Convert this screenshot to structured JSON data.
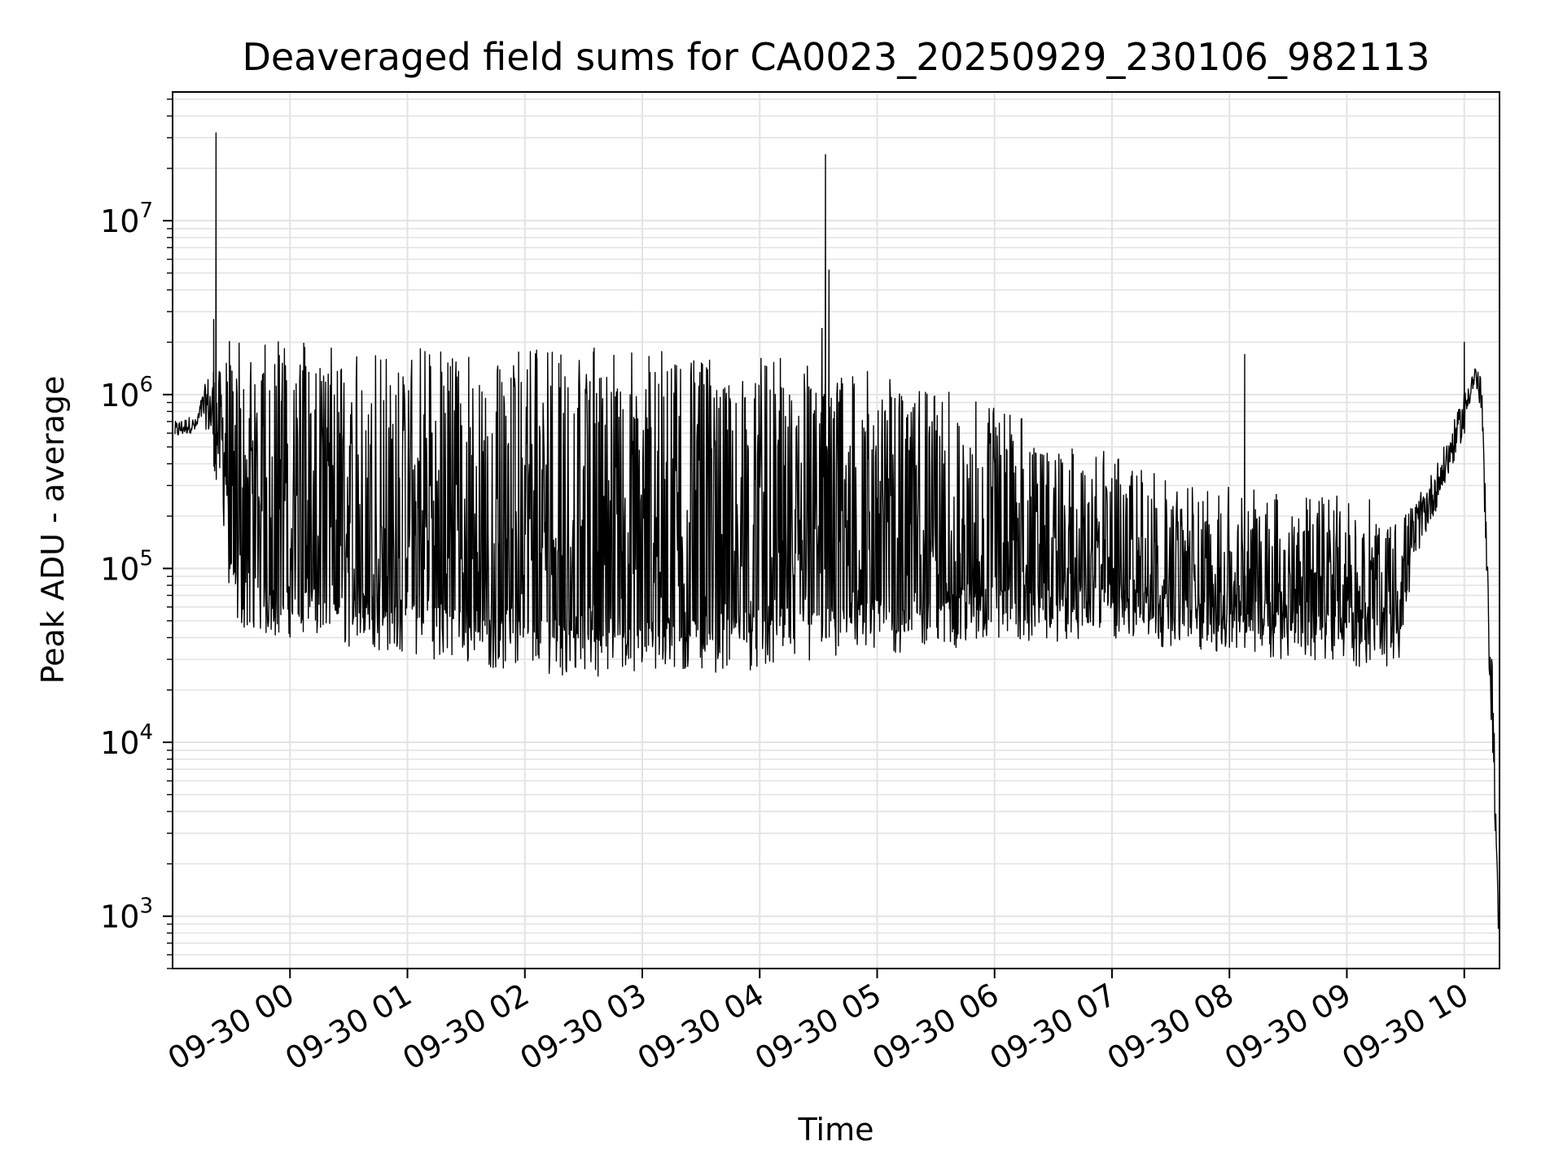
{
  "chart_data": {
    "type": "line",
    "title": "Deaveraged field sums for CA0023_20250929_230106_982113",
    "xlabel": "Time",
    "ylabel": "Peak ADU - average",
    "yscale": "log",
    "ylim": [
      500,
      55000000
    ],
    "xlim_hours": [
      -1.0,
      10.3
    ],
    "grid": true,
    "x_tick_hours": [
      0,
      1,
      2,
      3,
      4,
      5,
      6,
      7,
      8,
      9,
      10
    ],
    "x_tick_labels": [
      "09-30 00",
      "09-30 01",
      "09-30 02",
      "09-30 03",
      "09-30 04",
      "09-30 05",
      "09-30 06",
      "09-30 07",
      "09-30 08",
      "09-30 09",
      "09-30 10"
    ],
    "y_tick_values": [
      1000,
      10000,
      100000,
      1000000,
      10000000
    ],
    "y_tick_labels": [
      {
        "base": "10",
        "exp": "3"
      },
      {
        "base": "10",
        "exp": "4"
      },
      {
        "base": "10",
        "exp": "5"
      },
      {
        "base": "10",
        "exp": "6"
      },
      {
        "base": "10",
        "exp": "7"
      }
    ],
    "series": [
      {
        "name": "Peak ADU - average",
        "color": "#000000",
        "envelope": {
          "hours": [
            -0.98,
            -0.85,
            -0.8,
            -0.75,
            -0.7,
            -0.6,
            -0.5,
            -0.4,
            -0.3,
            -0.2,
            0.0,
            0.5,
            1.0,
            1.5,
            2.0,
            2.5,
            3.0,
            3.5,
            4.0,
            4.5,
            5.0,
            5.5,
            6.0,
            6.5,
            7.0,
            7.5,
            8.0,
            8.5,
            9.0,
            9.3,
            9.45,
            9.6,
            9.8,
            10.0,
            10.05,
            10.1,
            10.15,
            10.2,
            10.25,
            10.29
          ],
          "upper": [
            700000,
            750000,
            720000,
            1000000,
            1300000,
            1400000,
            1400000,
            1450000,
            1350000,
            1400000,
            1350000,
            1300000,
            1300000,
            1250000,
            1250000,
            1200000,
            1200000,
            1150000,
            1100000,
            1100000,
            900000,
            750000,
            600000,
            450000,
            300000,
            250000,
            200000,
            180000,
            180000,
            170000,
            200000,
            250000,
            450000,
            1000000,
            1400000,
            1500000,
            1200000,
            100000,
            20000,
            1000
          ],
          "lower": [
            550000,
            600000,
            600000,
            700000,
            600000,
            250000,
            80000,
            60000,
            50000,
            50000,
            48000,
            46000,
            45000,
            43000,
            40000,
            38000,
            38000,
            37000,
            38000,
            40000,
            42000,
            44000,
            45000,
            45000,
            44000,
            42000,
            40000,
            38000,
            35000,
            32000,
            35000,
            120000,
            250000,
            600000,
            900000,
            1100000,
            700000,
            40000,
            6000,
            800
          ],
          "dip_floor": [
            500000,
            500000,
            500000,
            450000,
            400000,
            120000,
            50000,
            45000,
            40000,
            40000,
            40000,
            35000,
            32000,
            28000,
            25000,
            24000,
            24000,
            25000,
            26000,
            28000,
            30000,
            34000,
            36000,
            38000,
            38000,
            35000,
            32000,
            30000,
            28000,
            26000,
            30000,
            100000,
            200000,
            500000,
            800000,
            1000000,
            600000,
            30000,
            4000,
            800
          ]
        },
        "spikes": [
          {
            "hour": -0.63,
            "value": 32000000
          },
          {
            "hour": -0.65,
            "value": 2700000
          },
          {
            "hour": 4.56,
            "value": 24000000
          },
          {
            "hour": 4.59,
            "value": 5200000
          },
          {
            "hour": 4.53,
            "value": 2400000
          },
          {
            "hour": 2.1,
            "value": 1800000
          },
          {
            "hour": 2.59,
            "value": 1850000
          },
          {
            "hour": 8.13,
            "value": 1700000
          },
          {
            "hour": 10.0,
            "value": 2000000
          }
        ]
      }
    ]
  }
}
